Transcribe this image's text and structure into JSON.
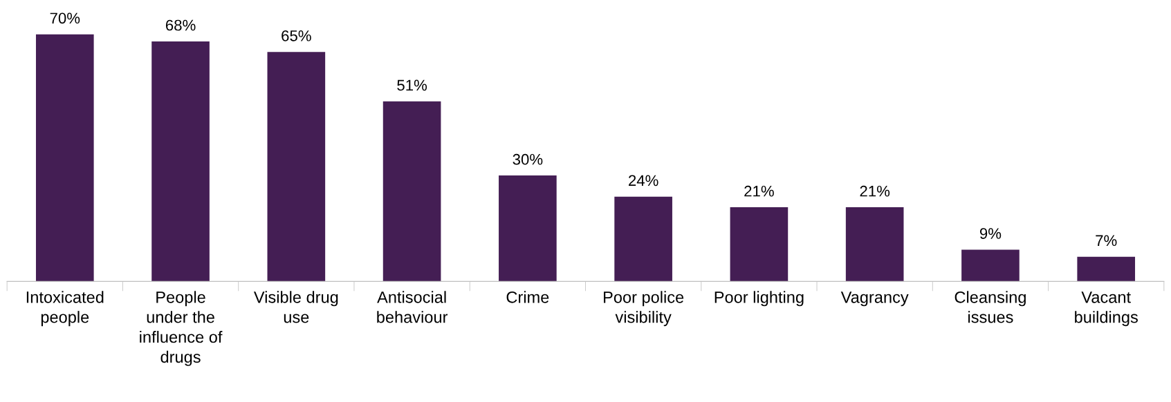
{
  "chart_data": {
    "type": "bar",
    "categories": [
      "Intoxicated\npeople",
      "People\nunder the\ninfluence of\ndrugs",
      "Visible drug\nuse",
      "Antisocial\nbehaviour",
      "Crime",
      "Poor police\nvisibility",
      "Poor lighting",
      "Vagrancy",
      "Cleansing\nissues",
      "Vacant\nbuildings"
    ],
    "values": [
      70,
      68,
      65,
      51,
      30,
      24,
      21,
      21,
      9,
      7
    ],
    "value_labels": [
      "70%",
      "68%",
      "65%",
      "51%",
      "30%",
      "24%",
      "21%",
      "21%",
      "9%",
      "7%"
    ],
    "color": "#441e54",
    "grid": false,
    "legend": false
  }
}
